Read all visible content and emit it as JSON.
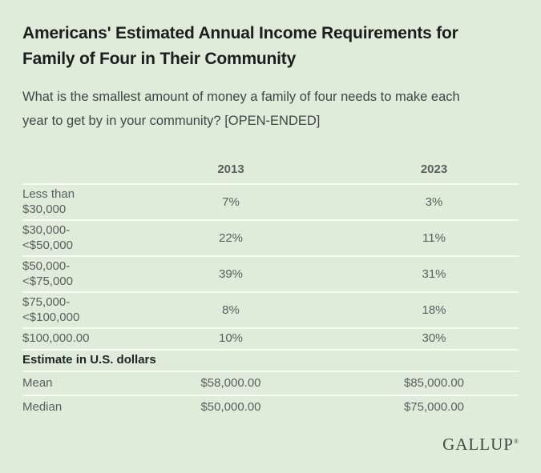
{
  "header": {
    "title_lines": [
      "Americans' Estimated Annual Income Requirements for",
      "Family of Four in Their Community"
    ],
    "question_lines": [
      "What is the smallest amount of money a family of four needs to make each",
      "year to get by in your community? [OPEN-ENDED]"
    ]
  },
  "table": {
    "columns": [
      "",
      "2013",
      "2023"
    ],
    "rows": [
      {
        "label_lines": [
          "Less than",
          "$30,000"
        ],
        "values": [
          "7%",
          "3%"
        ]
      },
      {
        "label_lines": [
          "$30,000-",
          "<$50,000"
        ],
        "values": [
          "22%",
          "11%"
        ]
      },
      {
        "label_lines": [
          "$50,000-",
          "<$75,000"
        ],
        "values": [
          "39%",
          "31%"
        ]
      },
      {
        "label_lines": [
          "$75,000-",
          "<$100,000"
        ],
        "values": [
          "8%",
          "18%"
        ]
      },
      {
        "label_lines": [
          "$100,000.00"
        ],
        "values": [
          "10%",
          "30%"
        ]
      }
    ],
    "section_header": "Estimate in U.S. dollars",
    "summary_rows": [
      {
        "label": "Mean",
        "values": [
          "$58,000.00",
          "$85,000.00"
        ]
      },
      {
        "label": "Median",
        "values": [
          "$50,000.00",
          "$75,000.00"
        ]
      }
    ]
  },
  "footer": {
    "brand": "GALLUP",
    "trademark": "®"
  },
  "colors": {
    "background": "#dfecd9",
    "divider": "#f7fbf4",
    "title_text": "#1b1d1f",
    "question_text": "#404549",
    "body_text": "#5a5e61",
    "header_text": "#212529",
    "brand_text": "#3e4c45"
  },
  "chart_data": {
    "type": "table",
    "title": "Americans' Estimated Annual Income Requirements for Family of Four in Their Community",
    "subtitle": "What is the smallest amount of money a family of four needs to make each year to get by in your community? [OPEN-ENDED]",
    "categories": [
      "Less than $30,000",
      "$30,000-<$50,000",
      "$50,000-<$75,000",
      "$75,000-<$100,000",
      "$100,000.00"
    ],
    "series": [
      {
        "name": "2013",
        "values": [
          7,
          22,
          39,
          8,
          10
        ]
      },
      {
        "name": "2023",
        "values": [
          3,
          11,
          31,
          18,
          30
        ]
      }
    ],
    "units": "percent",
    "summary": {
      "label": "Estimate in U.S. dollars",
      "rows": [
        {
          "stat": "Mean",
          "2013": "$58,000.00",
          "2023": "$85,000.00"
        },
        {
          "stat": "Median",
          "2013": "$50,000.00",
          "2023": "$75,000.00"
        }
      ]
    },
    "source": "GALLUP"
  }
}
